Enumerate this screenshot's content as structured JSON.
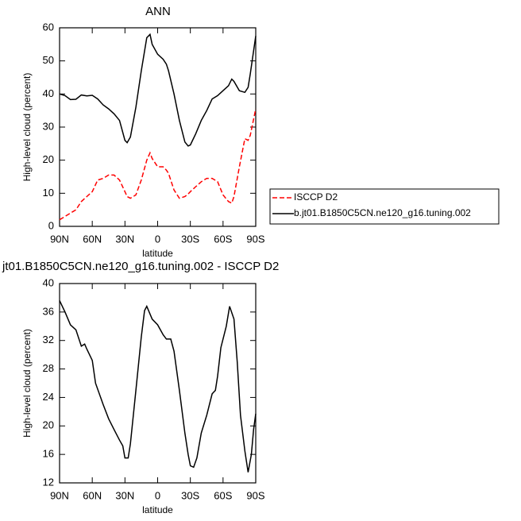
{
  "chart_data": [
    {
      "type": "line",
      "title": "ANN",
      "xlabel": "latitude",
      "ylabel": "High-level cloud (percent)",
      "x": [
        90,
        85,
        80,
        75,
        70,
        65,
        60,
        55,
        50,
        45,
        40,
        35,
        30,
        28,
        25,
        20,
        15,
        10,
        7,
        5,
        0,
        -5,
        -8,
        -10,
        -15,
        -20,
        -25,
        -28,
        -30,
        -35,
        -40,
        -45,
        -50,
        -55,
        -60,
        -65,
        -68,
        -70,
        -75,
        -80,
        -83,
        -85,
        -90
      ],
      "xlim": [
        90,
        -90
      ],
      "xticks": [
        {
          "value": 90,
          "label": "90N"
        },
        {
          "value": 60,
          "label": "60N"
        },
        {
          "value": 30,
          "label": "30N"
        },
        0,
        {
          "value": -30,
          "label": "30S"
        },
        {
          "value": -60,
          "label": "60S"
        },
        {
          "value": -90,
          "label": "90S"
        }
      ],
      "ylim": [
        0,
        60
      ],
      "yticks": [
        0,
        10,
        20,
        30,
        40,
        50,
        60
      ],
      "legend": "right",
      "series": [
        {
          "name": "ISCCP D2",
          "color": "#ff0000",
          "style": "dashed",
          "values": [
            2,
            3,
            4,
            5,
            7.5,
            9,
            10.5,
            14,
            14.5,
            15.5,
            15.5,
            14,
            10.5,
            9,
            8.5,
            9.5,
            14,
            20,
            22.2,
            20.5,
            18,
            18,
            17,
            16,
            11,
            8.5,
            9,
            9.8,
            10.5,
            12,
            13.5,
            14.5,
            14.5,
            13.5,
            9.5,
            7.5,
            7,
            9,
            18,
            26.5,
            26,
            27.5,
            35.5
          ]
        },
        {
          "name": "b.jt01.B1850C5CN.ne120_g16.tuning.002",
          "color": "#000000",
          "style": "solid",
          "values": [
            40,
            39.5,
            38.3,
            38.4,
            39.7,
            39.4,
            39.6,
            38.5,
            36.7,
            35.5,
            34,
            32,
            26,
            25.3,
            27,
            36,
            47,
            57,
            58,
            55,
            52,
            50.5,
            49,
            47,
            40,
            32,
            25.5,
            24.3,
            24.6,
            28,
            32,
            35,
            38.5,
            39.5,
            41,
            42.5,
            44.5,
            43.8,
            41,
            40.5,
            42,
            46,
            57.5
          ]
        }
      ]
    },
    {
      "type": "line",
      "title": "jt01.B1850C5CN.ne120_g16.tuning.002 - ISCCP D2",
      "xlabel": "latitude",
      "ylabel": "High-level cloud (percent)",
      "x": [
        90,
        85,
        80,
        75,
        70,
        67,
        65,
        60,
        57,
        50,
        45,
        40,
        35,
        32,
        30,
        27,
        25,
        20,
        15,
        12,
        10,
        5,
        0,
        -5,
        -8,
        -12,
        -15,
        -20,
        -25,
        -28,
        -30,
        -33,
        -36,
        -40,
        -45,
        -50,
        -53,
        -55,
        -58,
        -63,
        -66,
        -70,
        -73,
        -76,
        -80,
        -83,
        -86,
        -88,
        -90
      ],
      "xlim": [
        90,
        -90
      ],
      "xticks": [
        {
          "value": 90,
          "label": "90N"
        },
        {
          "value": 60,
          "label": "60N"
        },
        {
          "value": 30,
          "label": "30N"
        },
        0,
        {
          "value": -30,
          "label": "30S"
        },
        {
          "value": -60,
          "label": "60S"
        },
        {
          "value": -90,
          "label": "90S"
        }
      ],
      "ylim": [
        12,
        40
      ],
      "yticks": [
        12,
        16,
        20,
        24,
        28,
        32,
        36,
        40
      ],
      "color": "#000000",
      "values": [
        37.6,
        36,
        34.2,
        33.5,
        31.2,
        31.5,
        30.8,
        29.2,
        26,
        23,
        21,
        19.5,
        18,
        17.2,
        15.5,
        15.5,
        17.5,
        25,
        32.5,
        36.2,
        36.8,
        35,
        34.2,
        32.8,
        32.2,
        32.2,
        30.5,
        25,
        19,
        16,
        14.4,
        14.2,
        15.5,
        19,
        21.5,
        24.5,
        25,
        27,
        31,
        34,
        36.8,
        35,
        29,
        21.5,
        16.5,
        13.5,
        16,
        19.5,
        21.7
      ]
    }
  ]
}
